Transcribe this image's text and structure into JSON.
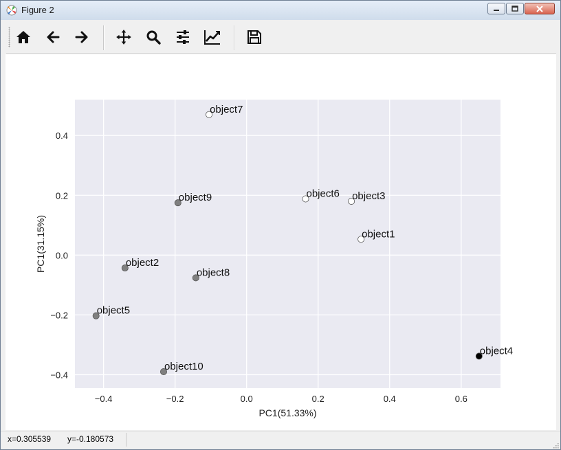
{
  "window": {
    "title": "Figure 2",
    "controls": {
      "minimize": "minimize-icon",
      "maximize": "maximize-icon",
      "close": "close-icon"
    }
  },
  "toolbar": {
    "buttons": [
      {
        "id": "home",
        "icon": "home-icon"
      },
      {
        "id": "back",
        "icon": "arrow-left-icon"
      },
      {
        "id": "forward",
        "icon": "arrow-right-icon"
      },
      {
        "id": "pan",
        "icon": "move-icon"
      },
      {
        "id": "zoom",
        "icon": "magnifier-icon"
      },
      {
        "id": "configure",
        "icon": "sliders-icon"
      },
      {
        "id": "edit",
        "icon": "line-chart-icon"
      },
      {
        "id": "save",
        "icon": "floppy-disk-icon"
      }
    ]
  },
  "status": {
    "x_readout": "x=0.305539",
    "y_readout": "y=-0.180573"
  },
  "chart_data": {
    "type": "scatter",
    "xlabel": "PC1(51.33%)",
    "ylabel": "PC1(31.15%)",
    "xlim": [
      -0.48,
      0.71
    ],
    "ylim": [
      -0.445,
      0.52
    ],
    "xticks": [
      -0.4,
      -0.2,
      0.0,
      0.2,
      0.4,
      0.6
    ],
    "yticks": [
      -0.4,
      -0.2,
      0.0,
      0.2,
      0.4
    ],
    "xtick_labels": [
      "−0.4",
      "−0.2",
      "0.0",
      "0.2",
      "0.4",
      "0.6"
    ],
    "ytick_labels": [
      "−0.4",
      "−0.2",
      "0.0",
      "0.2",
      "0.4"
    ],
    "grid": true,
    "background": "#eaeaf2",
    "grid_color": "#ffffff",
    "points": [
      {
        "label": "object1",
        "x": 0.32,
        "y": 0.053,
        "color": "#ffffff"
      },
      {
        "label": "object2",
        "x": -0.34,
        "y": -0.043,
        "color": "#808080"
      },
      {
        "label": "object3",
        "x": 0.293,
        "y": 0.18,
        "color": "#ffffff"
      },
      {
        "label": "object4",
        "x": 0.65,
        "y": -0.338,
        "color": "#000000"
      },
      {
        "label": "object5",
        "x": -0.421,
        "y": -0.203,
        "color": "#808080"
      },
      {
        "label": "object6",
        "x": 0.165,
        "y": 0.188,
        "color": "#ffffff"
      },
      {
        "label": "object7",
        "x": -0.105,
        "y": 0.47,
        "color": "#ffffff"
      },
      {
        "label": "object8",
        "x": -0.142,
        "y": -0.076,
        "color": "#808080"
      },
      {
        "label": "object9",
        "x": -0.192,
        "y": 0.175,
        "color": "#808080"
      },
      {
        "label": "object10",
        "x": -0.232,
        "y": -0.39,
        "color": "#808080"
      }
    ]
  }
}
